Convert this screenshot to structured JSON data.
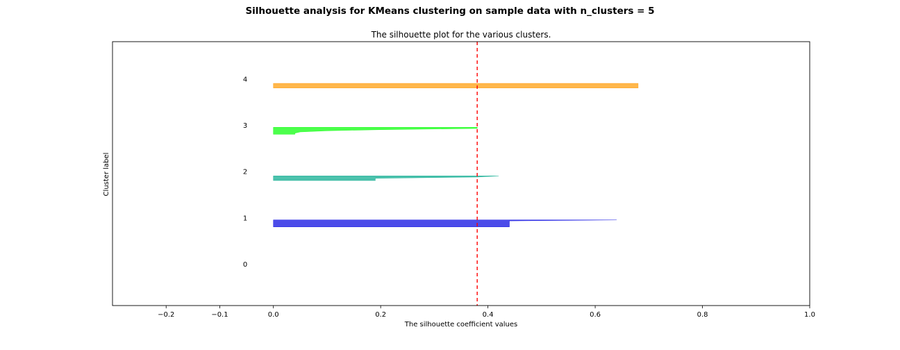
{
  "suptitle": "Silhouette analysis for KMeans clustering on sample data with n_clusters = 5",
  "chart_data": {
    "type": "area",
    "title": "The silhouette plot for the various clusters.",
    "xlabel": "The silhouette coefficient values",
    "ylabel": "Cluster label",
    "xlim": [
      -0.3,
      1.0
    ],
    "ylim": [
      0,
      57
    ],
    "xticks": [
      -0.2,
      -0.1,
      0.0,
      0.2,
      0.4,
      0.6,
      0.8,
      1.0
    ],
    "xtick_labels": [
      "−0.2",
      "−0.1",
      "0.0",
      "0.2",
      "0.4",
      "0.6",
      "0.8",
      "1.0"
    ],
    "grid": false,
    "legend": "none",
    "average_silhouette": 0.38,
    "average_line_color": "#ff0000",
    "clusters": [
      {
        "label": "0",
        "y_lower": 7,
        "y_upper": 7,
        "label_y": 9,
        "color": "#ff0000",
        "values": []
      },
      {
        "label": "1",
        "y_lower": 17,
        "y_upper": 18.5,
        "label_y": 19,
        "color": "#0000e0",
        "values": [
          0.64,
          0.44,
          0.44,
          0.44,
          0.44,
          0.44,
          0.44,
          0.44
        ]
      },
      {
        "label": "2",
        "y_lower": 27,
        "y_upper": 28,
        "label_y": 29,
        "color": "#00a88a",
        "values": [
          0.42,
          0.38,
          0.19,
          0.19,
          0.19
        ]
      },
      {
        "label": "3",
        "y_lower": 37,
        "y_upper": 38.5,
        "label_y": 39,
        "color": "#00ff00",
        "values": [
          0.38,
          0.38,
          0.2,
          0.1,
          0.05,
          0.04,
          0.04
        ]
      },
      {
        "label": "4",
        "y_lower": 47,
        "y_upper": 48,
        "label_y": 49,
        "color": "#ff9900",
        "values": [
          0.68,
          0.68,
          0.68,
          0.68
        ]
      }
    ]
  }
}
